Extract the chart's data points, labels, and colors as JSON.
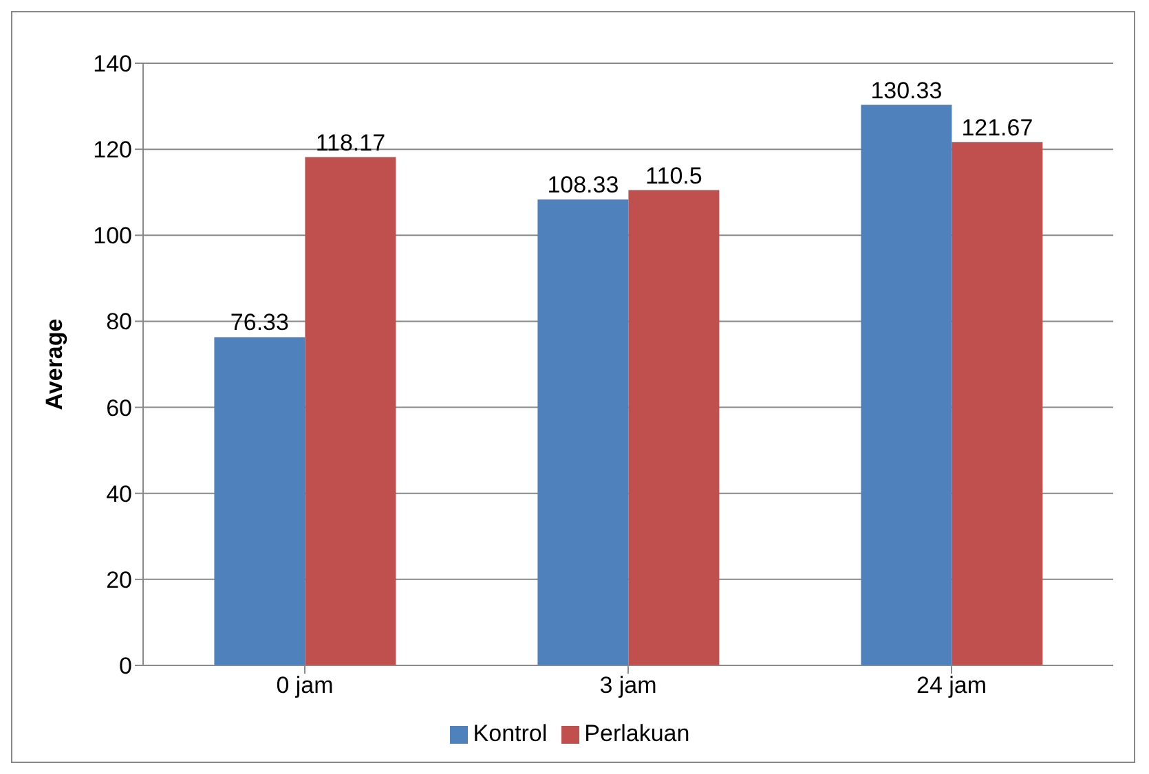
{
  "chart_data": {
    "type": "bar",
    "ylabel": "Average",
    "categories": [
      "0 jam",
      "3 jam",
      "24 jam"
    ],
    "series": [
      {
        "name": "Kontrol",
        "color": "#4f81bd",
        "values": [
          76.33,
          108.33,
          130.33
        ]
      },
      {
        "name": "Perlakuan",
        "color": "#c0504d",
        "values": [
          118.17,
          110.5,
          121.67
        ]
      }
    ],
    "ylim": [
      0,
      140
    ],
    "yticks": [
      0,
      20,
      40,
      60,
      80,
      100,
      120,
      140
    ],
    "grid": "y",
    "legend": "bottom",
    "data_labels": true
  }
}
